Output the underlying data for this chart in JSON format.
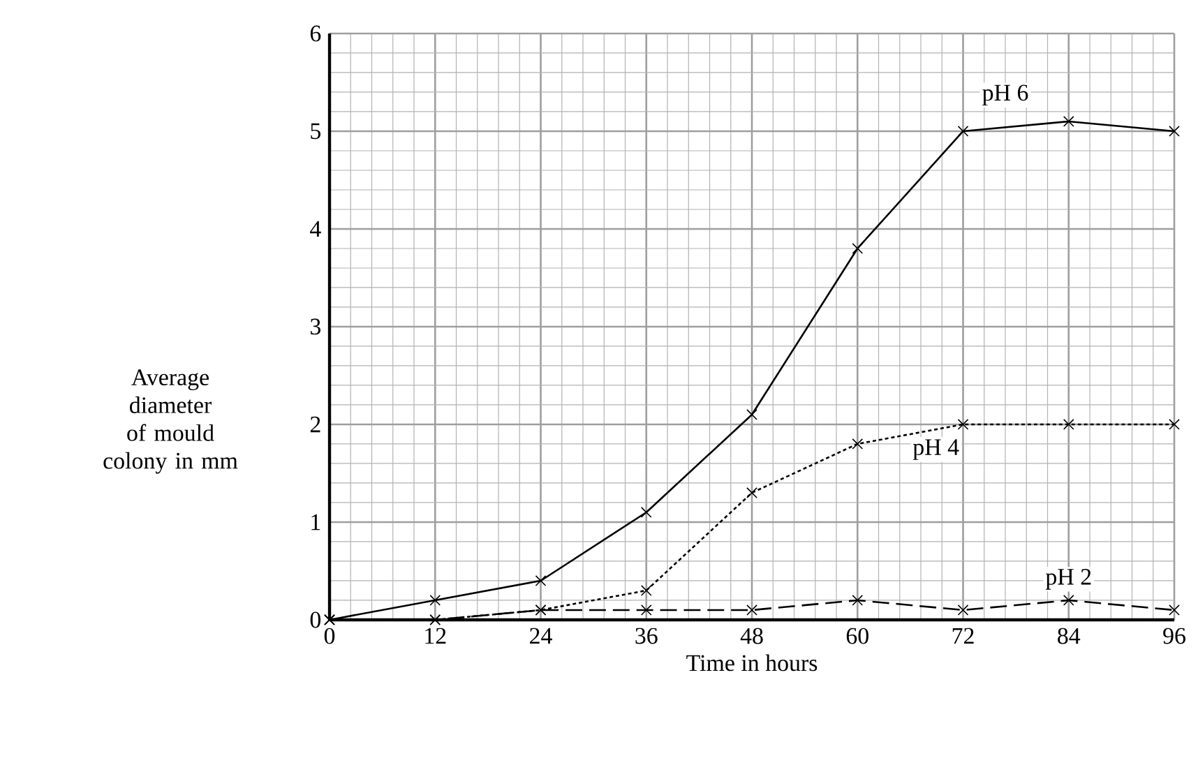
{
  "chart_data": {
    "type": "line",
    "xlabel": "Time in hours",
    "ylabel": "Average diameter of mould colony in mm",
    "x": [
      0,
      12,
      24,
      36,
      48,
      60,
      72,
      84,
      96
    ],
    "xlim": [
      0,
      96
    ],
    "xticks": [
      0,
      12,
      24,
      36,
      48,
      60,
      72,
      84,
      96
    ],
    "ylim": [
      0,
      6
    ],
    "yticks": [
      0,
      1,
      2,
      3,
      4,
      5,
      6
    ],
    "grid": true,
    "marker": "cross",
    "series": [
      {
        "name": "pH 6",
        "color": "#000000",
        "line_style": "solid",
        "values": [
          0,
          0.2,
          0.4,
          1.1,
          2.1,
          3.8,
          5.0,
          5.1,
          5.0
        ]
      },
      {
        "name": "pH 4",
        "color": "#000000",
        "line_style": "dotted",
        "values": [
          0,
          0,
          0.1,
          0.3,
          1.3,
          1.8,
          2.0,
          2.0,
          2.0
        ]
      },
      {
        "name": "pH 2",
        "color": "#000000",
        "line_style": "dashed",
        "values": [
          0,
          0,
          0.1,
          0.1,
          0.1,
          0.2,
          0.1,
          0.2,
          0.1
        ]
      }
    ]
  }
}
